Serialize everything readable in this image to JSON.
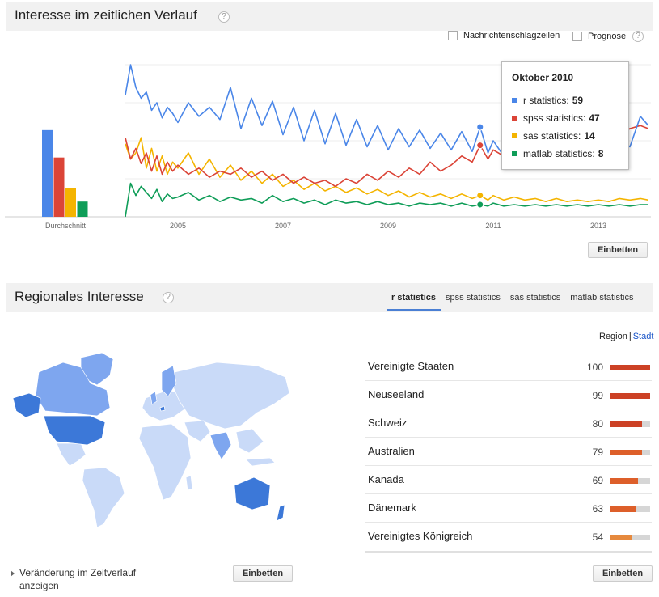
{
  "time_section": {
    "title": "Interesse im zeitlichen Verlauf",
    "help": "?",
    "checkbox_news": "Nachrichtenschlagzeilen",
    "checkbox_forecast": "Prognose",
    "forecast_help": "?",
    "embed_label": "Einbetten",
    "average_label": "Durchschnitt",
    "tooltip": {
      "title": "Oktober 2010",
      "rows": [
        {
          "name": "r statistics",
          "value": "59",
          "color": "#4a86e8"
        },
        {
          "name": "spss statistics",
          "value": "47",
          "color": "#db4437"
        },
        {
          "name": "sas statistics",
          "value": "14",
          "color": "#f4b400"
        },
        {
          "name": "matlab statistics",
          "value": "8",
          "color": "#0f9d58"
        }
      ]
    }
  },
  "chart_data": {
    "type": "line",
    "x_tick_labels": [
      "2005",
      "2007",
      "2009",
      "2011",
      "2013"
    ],
    "x_ticks_year": [
      2005,
      2007,
      2009,
      2011,
      2013
    ],
    "x_range": [
      2004.0,
      2014.0
    ],
    "ylim": [
      0,
      100
    ],
    "averages": [
      {
        "series": "r statistics",
        "value": 57
      },
      {
        "series": "spss statistics",
        "value": 39
      },
      {
        "series": "sas statistics",
        "value": 19
      },
      {
        "series": "matlab statistics",
        "value": 10
      }
    ],
    "series": [
      {
        "name": "r statistics",
        "color": "#4a86e8",
        "x": [
          2004.0,
          2004.1,
          2004.2,
          2004.3,
          2004.4,
          2004.5,
          2004.6,
          2004.7,
          2004.8,
          2004.9,
          2005.0,
          2005.2,
          2005.4,
          2005.6,
          2005.8,
          2006.0,
          2006.2,
          2006.4,
          2006.6,
          2006.8,
          2007.0,
          2007.2,
          2007.4,
          2007.6,
          2007.8,
          2008.0,
          2008.2,
          2008.4,
          2008.6,
          2008.8,
          2009.0,
          2009.2,
          2009.4,
          2009.6,
          2009.8,
          2010.0,
          2010.2,
          2010.4,
          2010.6,
          2010.75,
          2010.9,
          2011.0,
          2011.2,
          2011.4,
          2011.6,
          2011.8,
          2012.0,
          2012.2,
          2012.4,
          2012.6,
          2012.8,
          2013.0,
          2013.2,
          2013.4,
          2013.6,
          2013.8,
          2013.95
        ],
        "values": [
          80,
          100,
          85,
          78,
          82,
          70,
          75,
          65,
          72,
          68,
          62,
          75,
          66,
          72,
          64,
          85,
          58,
          78,
          60,
          76,
          54,
          72,
          50,
          70,
          48,
          68,
          47,
          64,
          46,
          60,
          44,
          58,
          46,
          57,
          45,
          55,
          44,
          56,
          43,
          59,
          42,
          50,
          40,
          52,
          46,
          55,
          42,
          50,
          44,
          52,
          46,
          48,
          44,
          52,
          46,
          66,
          60
        ]
      },
      {
        "name": "spss statistics",
        "color": "#db4437",
        "x": [
          2004.0,
          2004.1,
          2004.2,
          2004.3,
          2004.4,
          2004.5,
          2004.6,
          2004.7,
          2004.8,
          2004.9,
          2005.0,
          2005.2,
          2005.4,
          2005.6,
          2005.8,
          2006.0,
          2006.2,
          2006.4,
          2006.6,
          2006.8,
          2007.0,
          2007.2,
          2007.4,
          2007.6,
          2007.8,
          2008.0,
          2008.2,
          2008.4,
          2008.6,
          2008.8,
          2009.0,
          2009.2,
          2009.4,
          2009.6,
          2009.8,
          2010.0,
          2010.2,
          2010.4,
          2010.6,
          2010.75,
          2010.9,
          2011.0,
          2011.2,
          2011.4,
          2011.6,
          2011.8,
          2012.0,
          2012.2,
          2012.4,
          2012.6,
          2012.8,
          2013.0,
          2013.2,
          2013.4,
          2013.6,
          2013.8,
          2013.95
        ],
        "values": [
          52,
          38,
          45,
          35,
          42,
          30,
          40,
          28,
          36,
          30,
          34,
          28,
          32,
          26,
          30,
          28,
          32,
          26,
          30,
          24,
          28,
          22,
          26,
          22,
          24,
          20,
          25,
          22,
          28,
          24,
          30,
          26,
          32,
          28,
          36,
          30,
          34,
          40,
          36,
          47,
          38,
          44,
          40,
          50,
          44,
          52,
          48,
          55,
          50,
          58,
          52,
          56,
          50,
          54,
          58,
          60,
          58
        ]
      },
      {
        "name": "sas statistics",
        "color": "#f4b400",
        "x": [
          2004.0,
          2004.1,
          2004.2,
          2004.3,
          2004.4,
          2004.5,
          2004.6,
          2004.7,
          2004.8,
          2004.9,
          2005.0,
          2005.2,
          2005.4,
          2005.6,
          2005.8,
          2006.0,
          2006.2,
          2006.4,
          2006.6,
          2006.8,
          2007.0,
          2007.2,
          2007.4,
          2007.6,
          2007.8,
          2008.0,
          2008.2,
          2008.4,
          2008.6,
          2008.8,
          2009.0,
          2009.2,
          2009.4,
          2009.6,
          2009.8,
          2010.0,
          2010.2,
          2010.4,
          2010.6,
          2010.75,
          2010.9,
          2011.0,
          2011.2,
          2011.4,
          2011.6,
          2011.8,
          2012.0,
          2012.2,
          2012.4,
          2012.6,
          2012.8,
          2013.0,
          2013.2,
          2013.4,
          2013.6,
          2013.8,
          2013.95
        ],
        "values": [
          48,
          38,
          42,
          52,
          32,
          45,
          30,
          40,
          28,
          36,
          32,
          42,
          28,
          38,
          26,
          34,
          24,
          30,
          22,
          28,
          20,
          24,
          18,
          22,
          17,
          20,
          16,
          19,
          15,
          18,
          14,
          17,
          13,
          16,
          13,
          15,
          12,
          15,
          12,
          14,
          11,
          14,
          11,
          13,
          11,
          12,
          10,
          12,
          10,
          11,
          10,
          11,
          10,
          12,
          11,
          12,
          11
        ]
      },
      {
        "name": "matlab statistics",
        "color": "#0f9d58",
        "x": [
          2004.0,
          2004.1,
          2004.2,
          2004.3,
          2004.4,
          2004.5,
          2004.6,
          2004.7,
          2004.8,
          2004.9,
          2005.0,
          2005.2,
          2005.4,
          2005.6,
          2005.8,
          2006.0,
          2006.2,
          2006.4,
          2006.6,
          2006.8,
          2007.0,
          2007.2,
          2007.4,
          2007.6,
          2007.8,
          2008.0,
          2008.2,
          2008.4,
          2008.6,
          2008.8,
          2009.0,
          2009.2,
          2009.4,
          2009.6,
          2009.8,
          2010.0,
          2010.2,
          2010.4,
          2010.6,
          2010.75,
          2010.9,
          2011.0,
          2011.2,
          2011.4,
          2011.6,
          2011.8,
          2012.0,
          2012.2,
          2012.4,
          2012.6,
          2012.8,
          2013.0,
          2013.2,
          2013.4,
          2013.6,
          2013.8,
          2013.95
        ],
        "values": [
          0,
          22,
          14,
          20,
          16,
          12,
          18,
          10,
          15,
          12,
          13,
          16,
          11,
          14,
          10,
          13,
          11,
          12,
          9,
          14,
          10,
          12,
          9,
          11,
          8,
          11,
          9,
          10,
          8,
          10,
          8,
          9,
          7,
          9,
          8,
          9,
          7,
          9,
          7,
          8,
          7,
          9,
          7,
          8,
          7,
          8,
          7,
          8,
          7,
          8,
          7,
          8,
          7,
          8,
          7,
          8,
          8
        ]
      }
    ]
  },
  "region_section": {
    "title": "Regionales Interesse",
    "help": "?",
    "tabs": [
      "r statistics",
      "spss statistics",
      "sas statistics",
      "matlab statistics"
    ],
    "toggle_region": "Region",
    "toggle_city": "Stadt",
    "rankings": [
      {
        "name": "Vereinigte Staaten",
        "value": "100",
        "fill": 1.0,
        "color": "#cc4125"
      },
      {
        "name": "Neuseeland",
        "value": "99",
        "fill": 0.99,
        "color": "#cc4125"
      },
      {
        "name": "Schweiz",
        "value": "80",
        "fill": 0.8,
        "color": "#cc4125"
      },
      {
        "name": "Australien",
        "value": "79",
        "fill": 0.79,
        "color": "#dd5f2a"
      },
      {
        "name": "Kanada",
        "value": "69",
        "fill": 0.69,
        "color": "#dd5f2a"
      },
      {
        "name": "Dänemark",
        "value": "63",
        "fill": 0.63,
        "color": "#dd5f2a"
      },
      {
        "name": "Vereinigtes Königreich",
        "value": "54",
        "fill": 0.54,
        "color": "#e6893d"
      }
    ],
    "change_over_time": "Veränderung im Zeitverlauf anzeigen",
    "embed_map": "Einbetten",
    "embed_list": "Einbetten"
  }
}
